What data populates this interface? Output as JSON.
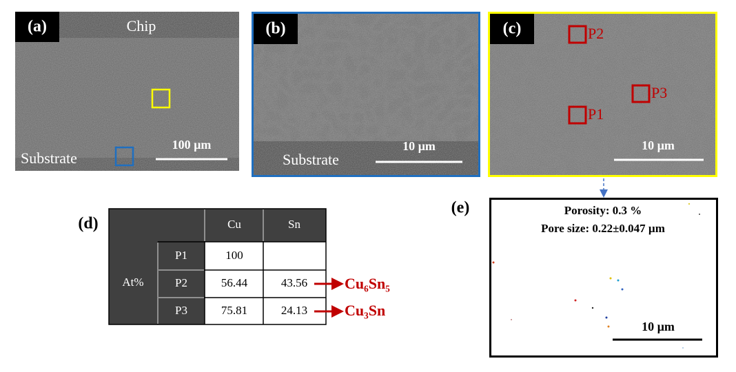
{
  "panel_a": {
    "label": "(a)",
    "top": "Chip",
    "bottom": "Substrate",
    "scale": "100 µm"
  },
  "panel_b": {
    "label": "(b)",
    "bottom": "Substrate",
    "scale": "10 µm"
  },
  "panel_c": {
    "label": "(c)",
    "points": [
      "P2",
      "P3",
      "P1"
    ],
    "scale": "10 µm"
  },
  "panel_d": {
    "label": "(d)",
    "table": {
      "header": [
        "Cu",
        "Sn"
      ],
      "group": "At%",
      "rows": [
        [
          "P1",
          100
        ],
        [
          "P2",
          56.44,
          43.56
        ],
        [
          "P3",
          75.81,
          24.13
        ]
      ]
    },
    "phases": [
      "Cu₆Sn₅",
      "Cu₃Sn"
    ]
  },
  "panel_e": {
    "label": "(e)",
    "porosity": "Porosity: 0.3 %",
    "pore_size": "Pore size: 0.22±0.047 µm",
    "scale": "10 µm"
  }
}
